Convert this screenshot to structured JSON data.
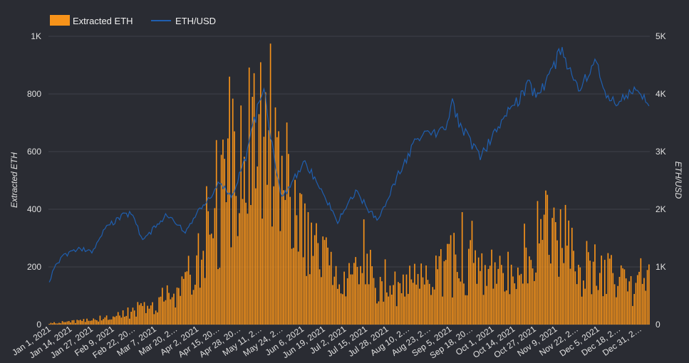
{
  "chart_data": {
    "type": "bar+line",
    "title": "",
    "colors": {
      "bars": "#f7931a",
      "line": "#1f5fb0",
      "background": "#2a2c33",
      "grid": "#3d4049"
    },
    "legend": {
      "placement": "top-left",
      "bars_label": "Extracted ETH",
      "line_label": "ETH/USD"
    },
    "ylabel_left": "Extracted ETH",
    "ylabel_right": "ETH/USD",
    "ylim_left": [
      0,
      1000
    ],
    "ylim_right": [
      0,
      5000
    ],
    "yticks_left": [
      "0",
      "200",
      "400",
      "600",
      "800",
      "1K"
    ],
    "yticks_right": [
      "0",
      "1K",
      "2K",
      "3K",
      "4K",
      "5K"
    ],
    "x_range": [
      "Jan 1, 2021",
      "Jan 2, 2022"
    ],
    "grid": true,
    "xticks": [
      "Jan 1, 2021",
      "Jan 14, 2021",
      "Jan 27, 2021",
      "Feb 9, 2021",
      "Feb 22, 20…",
      "Mar 7, 2021",
      "Mar 20, 2…",
      "Apr 2, 2021",
      "Apr 15, 20…",
      "Apr 28, 20…",
      "May 11, 2…",
      "May 24, 2…",
      "Jun 6, 2021",
      "Jun 19, 2021",
      "Jul 2, 2021",
      "Jul 15, 2021",
      "Jul 28, 2021",
      "Aug 10, 2…",
      "Aug 23, 2…",
      "Sep 5, 2021",
      "Sep 18, 20…",
      "Oct 1, 2021",
      "Oct 14, 2021",
      "Oct 27, 2021",
      "Nov 9, 2021",
      "Nov 22, 2…",
      "Dec 5, 2021",
      "Dec 18, 2…",
      "Dec 31, 2…"
    ],
    "extracted_eth_keypoints": [
      [
        "Jan 1, 2021",
        5
      ],
      [
        "Jan 20, 2021",
        12
      ],
      [
        "Feb 5, 2021",
        25
      ],
      [
        "Feb 20, 2021",
        45
      ],
      [
        "Mar 5, 2021",
        65
      ],
      [
        "Mar 20, 2021",
        110
      ],
      [
        "Mar 25, 2021",
        175
      ],
      [
        "Apr 2, 2021",
        220
      ],
      [
        "Apr 10, 2021",
        360
      ],
      [
        "Apr 20, 2021",
        500
      ],
      [
        "Apr 30, 2021",
        560
      ],
      [
        "May 7, 2021",
        620
      ],
      [
        "May 12, 2021",
        760
      ],
      [
        "May 16, 2021",
        700
      ],
      [
        "May 22, 2021",
        560
      ],
      [
        "Jun 1, 2021",
        400
      ],
      [
        "Jun 10, 2021",
        300
      ],
      [
        "Jun 20, 2021",
        200
      ],
      [
        "Jul 1, 2021",
        140
      ],
      [
        "Jul 15, 2021",
        170
      ],
      [
        "Aug 1, 2021",
        135
      ],
      [
        "Aug 20, 2021",
        150
      ],
      [
        "Sep 5, 2021",
        210
      ],
      [
        "Sep 20, 2021",
        190
      ],
      [
        "Oct 5, 2021",
        160
      ],
      [
        "Oct 20, 2021",
        200
      ],
      [
        "Oct 28, 2021",
        370
      ],
      [
        "Nov 5, 2021",
        280
      ],
      [
        "Nov 20, 2021",
        220
      ],
      [
        "Dec 5, 2021",
        180
      ],
      [
        "Dec 15, 2021",
        150
      ],
      [
        "Dec 25, 2021",
        130
      ],
      [
        "Jan 2, 2022",
        190
      ]
    ],
    "extracted_eth_peaks": [
      [
        "Mar 15, 2021",
        110
      ],
      [
        "Apr 7, 2021",
        480
      ],
      [
        "Apr 13, 2021",
        640
      ],
      [
        "Apr 21, 2021",
        860
      ],
      [
        "Apr 28, 2021",
        760
      ],
      [
        "May 10, 2021",
        910
      ],
      [
        "May 5, 2021",
        790
      ],
      [
        "May 20, 2021",
        650
      ],
      [
        "Jun 8, 2021",
        390
      ],
      [
        "Jul 12, 2021",
        365
      ],
      [
        "Sep 10, 2021",
        390
      ],
      [
        "Sep 16, 2021",
        360
      ],
      [
        "Oct 18, 2021",
        350
      ],
      [
        "Oct 31, 2021",
        465
      ],
      [
        "Nov 12, 2021",
        415
      ],
      [
        "Nov 25, 2021",
        290
      ],
      [
        "Dec 28, 2021",
        230
      ]
    ],
    "eth_usd_keypoints": [
      [
        "Jan 1, 2021",
        730
      ],
      [
        "Jan 4, 2021",
        1000
      ],
      [
        "Jan 10, 2021",
        1200
      ],
      [
        "Jan 20, 2021",
        1320
      ],
      [
        "Jan 27, 2021",
        1250
      ],
      [
        "Feb 5, 2021",
        1700
      ],
      [
        "Feb 13, 2021",
        1850
      ],
      [
        "Feb 20, 2021",
        1950
      ],
      [
        "Feb 27, 2021",
        1450
      ],
      [
        "Mar 13, 2021",
        1900
      ],
      [
        "Mar 25, 2021",
        1600
      ],
      [
        "Apr 2, 2021",
        1950
      ],
      [
        "Apr 15, 2021",
        2450
      ],
      [
        "Apr 22, 2021",
        2200
      ],
      [
        "Apr 30, 2021",
        2800
      ],
      [
        "May 6, 2021",
        3500
      ],
      [
        "May 12, 2021",
        4150
      ],
      [
        "May 19, 2021",
        2700
      ],
      [
        "May 23, 2021",
        2200
      ],
      [
        "Jun 6, 2021",
        2800
      ],
      [
        "Jun 15, 2021",
        2400
      ],
      [
        "Jun 26, 2021",
        1800
      ],
      [
        "Jul 7, 2021",
        2300
      ],
      [
        "Jul 20, 2021",
        1800
      ],
      [
        "Aug 1, 2021",
        2550
      ],
      [
        "Aug 14, 2021",
        3250
      ],
      [
        "Aug 31, 2021",
        3400
      ],
      [
        "Sep 4, 2021",
        3900
      ],
      [
        "Sep 8, 2021",
        3500
      ],
      [
        "Sep 21, 2021",
        2900
      ],
      [
        "Oct 6, 2021",
        3600
      ],
      [
        "Oct 21, 2021",
        4150
      ],
      [
        "Oct 27, 2021",
        3950
      ],
      [
        "Nov 10, 2021",
        4800
      ],
      [
        "Nov 20, 2021",
        4000
      ],
      [
        "Dec 1, 2021",
        4600
      ],
      [
        "Dec 5, 2021",
        4000
      ],
      [
        "Dec 15, 2021",
        3850
      ],
      [
        "Dec 27, 2021",
        4100
      ],
      [
        "Jan 2, 2022",
        3700
      ]
    ]
  }
}
